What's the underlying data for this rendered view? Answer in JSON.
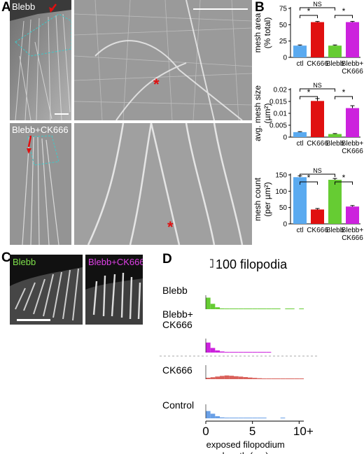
{
  "panel_letters": {
    "a": "A",
    "b": "B",
    "c": "C",
    "d": "D"
  },
  "panel_a": {
    "top_label": "Blebb",
    "bottom_label": "Blebb+CK666",
    "asterisk": "*"
  },
  "panel_c": {
    "label_left": "Blebb",
    "label_right": "Blebb+CK666",
    "label_left_color": "#7ee04a",
    "label_right_color": "#e040e8"
  },
  "colors": {
    "ctl": "#5aaaf0",
    "ck666": "#e01010",
    "blebb": "#66cc33",
    "blebb_ck666": "#cc22dd",
    "hist_ck666": "#d9605a",
    "hist_control": "#6aa0e6",
    "hist_blebb": "#66cc33",
    "hist_blebb_ck666": "#cc22dd"
  },
  "chart_data": [
    {
      "type": "bar",
      "ylabel": [
        "mesh area",
        "(% total)"
      ],
      "categories": [
        "ctl",
        "CK666",
        "Blebb",
        "Blebb+\nCK666"
      ],
      "values": [
        18,
        54,
        18,
        54
      ],
      "errors": [
        1,
        1,
        1,
        1
      ],
      "ylim": [
        0,
        75
      ],
      "yticks": [
        0,
        25,
        50,
        75
      ],
      "ytick_labels": [
        "0",
        "25",
        "50",
        "75"
      ],
      "significance": [
        {
          "from": 0,
          "to": 1,
          "label": "*",
          "level": "low"
        },
        {
          "from": 2,
          "to": 3,
          "label": "*",
          "level": "low"
        },
        {
          "from": 0,
          "to": 2,
          "label": "NS",
          "level": "high"
        }
      ]
    },
    {
      "type": "bar",
      "ylabel": [
        "avg. mesh size",
        "(µm²)"
      ],
      "categories": [
        "ctl",
        "CK666",
        "Blebb",
        "Blebb+\nCK666"
      ],
      "values": [
        0.0021,
        0.0152,
        0.0013,
        0.0122
      ],
      "errors": [
        0.0002,
        0.001,
        0.0002,
        0.001
      ],
      "ylim": [
        0,
        0.02
      ],
      "yticks": [
        0,
        0.005,
        0.01,
        0.015,
        0.02
      ],
      "ytick_labels": [
        "0",
        "0.005",
        "0.01",
        "0.015",
        "0.02"
      ],
      "significance": [
        {
          "from": 0,
          "to": 1,
          "label": "*",
          "level": "low"
        },
        {
          "from": 2,
          "to": 3,
          "label": "*",
          "level": "low"
        },
        {
          "from": 0,
          "to": 2,
          "label": "NS",
          "level": "high"
        }
      ]
    },
    {
      "type": "bar",
      "ylabel": [
        "mesh count",
        "(per µm²)"
      ],
      "categories": [
        "ctl",
        "CK666",
        "Blebb",
        "Blebb+\nCK666"
      ],
      "values": [
        143,
        44,
        135,
        53
      ],
      "errors": [
        4,
        3,
        4,
        3
      ],
      "ylim": [
        0,
        150
      ],
      "yticks": [
        0,
        50,
        100,
        150
      ],
      "ytick_labels": [
        "0",
        "50",
        "100",
        "150"
      ],
      "significance": [
        {
          "from": 0,
          "to": 1,
          "label": "*",
          "level": "low"
        },
        {
          "from": 2,
          "to": 3,
          "label": "*",
          "level": "low"
        },
        {
          "from": 0,
          "to": 2,
          "label": "NS",
          "level": "high"
        }
      ]
    },
    {
      "type": "bar",
      "title": "",
      "xlabel": "exposed filopodium length (µm)",
      "x_tick_labels": [
        "0",
        "5",
        "10+"
      ],
      "xlim": [
        0,
        10.5
      ],
      "scale_bar_label": "100 filopodia",
      "bin_width": 0.5,
      "series": [
        {
          "name": "Blebb",
          "color_key": "hist_blebb",
          "values": [
            150,
            70,
            25,
            10,
            4,
            2,
            1,
            1,
            1,
            0.5,
            0.5,
            0.5,
            0.5,
            0.3,
            0.3,
            0.3,
            0,
            0.3,
            0.3,
            0,
            0.3
          ]
        },
        {
          "name": "Blebb+\nCK666",
          "color_key": "hist_blebb_ck666",
          "values": [
            130,
            60,
            28,
            14,
            8,
            5,
            3,
            2,
            1.5,
            1,
            1,
            0.6,
            0.4,
            0.3
          ]
        },
        {
          "name": "CK666",
          "color_key": "hist_ck666",
          "values": [
            18,
            25,
            34,
            42,
            48,
            44,
            38,
            33,
            27,
            21,
            16,
            12,
            9,
            6,
            4,
            3,
            2,
            1.5,
            1,
            0.6,
            0.4
          ]
        },
        {
          "name": "Control",
          "color_key": "hist_control",
          "values": [
            95,
            60,
            28,
            12,
            6,
            3,
            2,
            1,
            1,
            0.5,
            0.5,
            0.4,
            0.4,
            0,
            0,
            0,
            0.4
          ]
        }
      ]
    }
  ]
}
